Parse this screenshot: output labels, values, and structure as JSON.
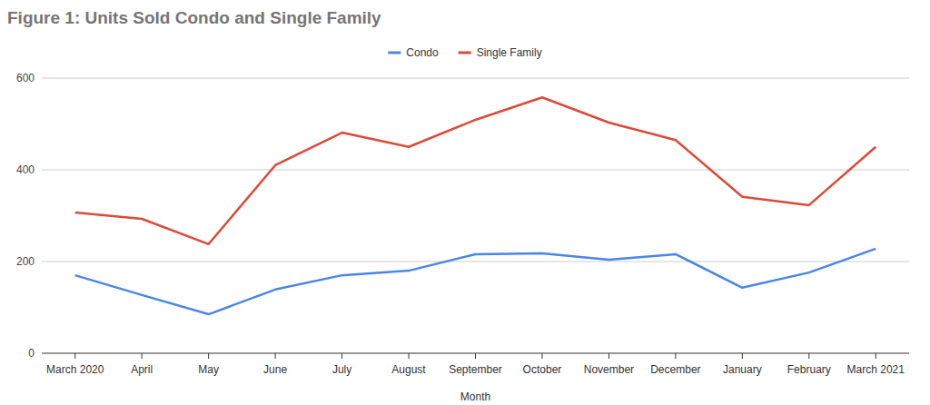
{
  "chart_data": {
    "type": "line",
    "title": "Figure 1: Units Sold Condo and Single Family",
    "x_label": "Month",
    "categories": [
      "March 2020",
      "April",
      "May",
      "June",
      "July",
      "August",
      "September",
      "October",
      "November",
      "December",
      "January",
      "February",
      "March 2021"
    ],
    "series": [
      {
        "name": "Condo",
        "color": "#4a86e8",
        "values": [
          170,
          127,
          85,
          139,
          170,
          180,
          216,
          218,
          204,
          216,
          143,
          176,
          228
        ]
      },
      {
        "name": "Single Family",
        "color": "#dc4a38",
        "values": [
          307,
          293,
          238,
          410,
          481,
          450,
          509,
          558,
          503,
          465,
          341,
          323,
          450
        ]
      }
    ],
    "ylim": [
      0,
      600
    ],
    "yticks": [
      0,
      200,
      400,
      600
    ],
    "grid": true,
    "legend": "top"
  }
}
